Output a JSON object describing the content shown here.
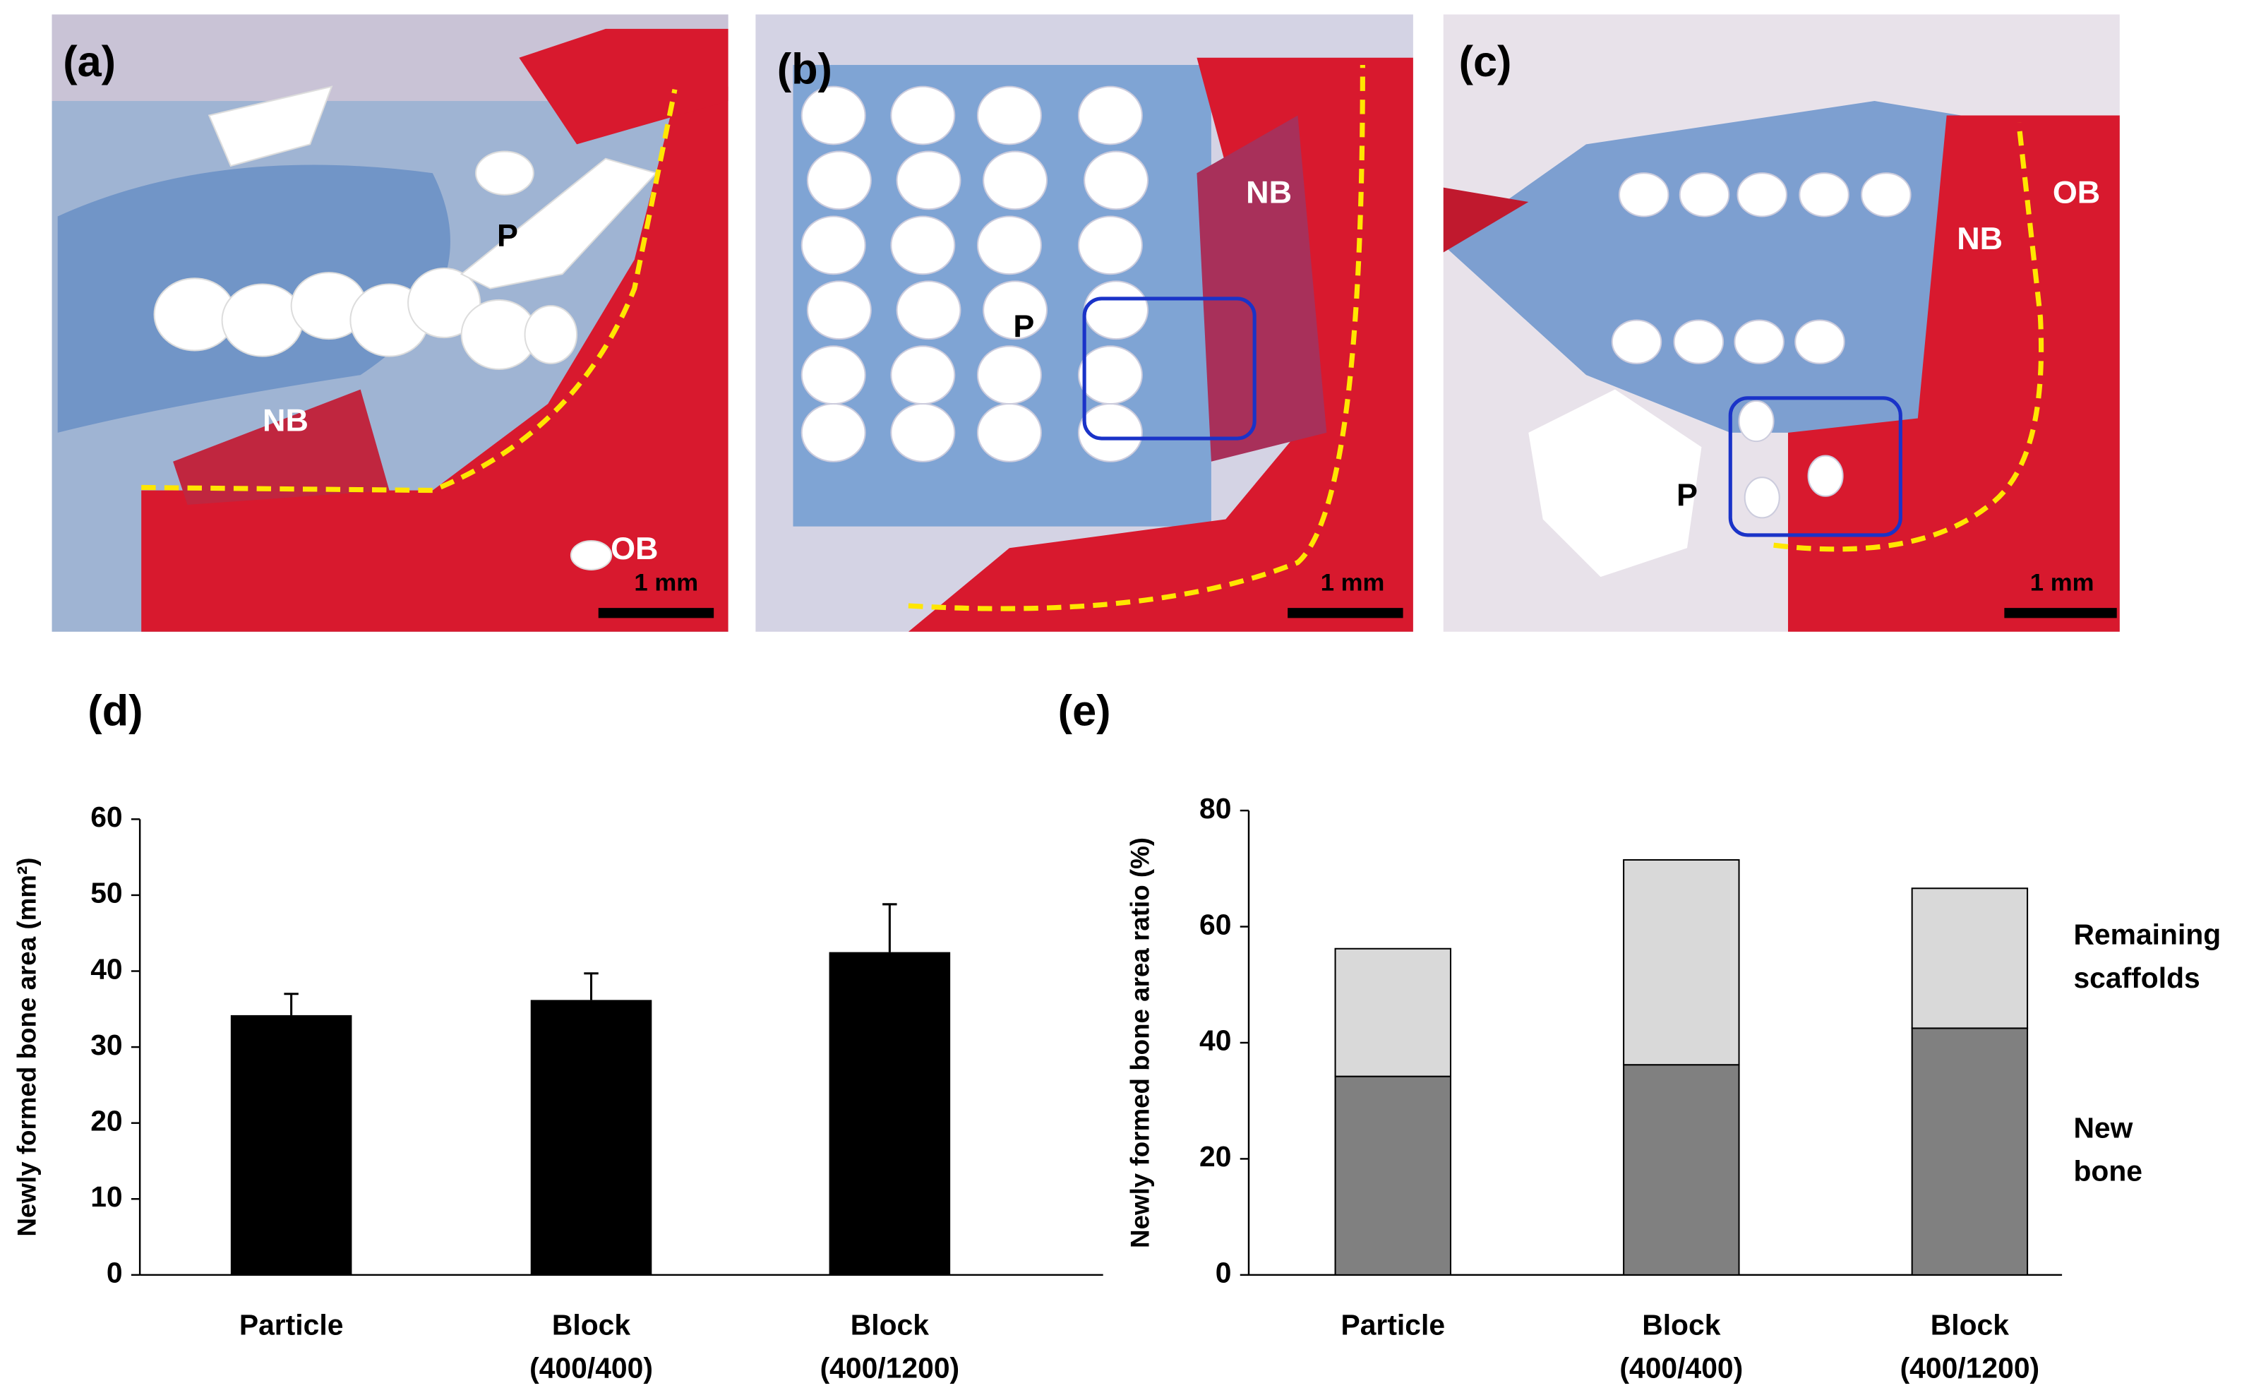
{
  "panels": [
    {
      "label": "(a)",
      "annotations": [
        "P",
        "NB",
        "OB"
      ],
      "scale_bar": "1 mm"
    },
    {
      "label": "(b)",
      "annotations": [
        "NB",
        "P"
      ],
      "scale_bar": "1 mm"
    },
    {
      "label": "(c)",
      "annotations": [
        "OB",
        "NB",
        "P"
      ],
      "scale_bar": "1 mm"
    }
  ],
  "chart_data": [
    {
      "type": "bar",
      "title": "(d)",
      "y_label": "Newly formed bone area (mm²)",
      "categories": [
        "Particle",
        "Block (400/400)",
        "Block (400/1200)"
      ],
      "values": [
        34.2,
        36.2,
        42.5
      ],
      "errors": [
        2.8,
        3.5,
        6.3
      ],
      "color": "#000000",
      "ylim": [
        0,
        60
      ],
      "yticks": [
        0,
        10,
        20,
        30,
        40,
        50,
        60
      ]
    },
    {
      "type": "stacked_bar",
      "title": "(e)",
      "y_label": "Newly formed bone area ratio (%)",
      "categories": [
        "Particle",
        "Block (400/400)",
        "Block (400/1200)"
      ],
      "series": [
        {
          "name": "New bone",
          "color": "#808080",
          "values": [
            34.2,
            36.2,
            42.5
          ]
        },
        {
          "name": "Remaining scaffolds",
          "color": "#d9d9d9",
          "values": [
            22.0,
            35.3,
            24.1
          ]
        }
      ],
      "ylim": [
        0,
        80
      ],
      "yticks": [
        0,
        20,
        40,
        60,
        80
      ],
      "legend": "right"
    }
  ]
}
